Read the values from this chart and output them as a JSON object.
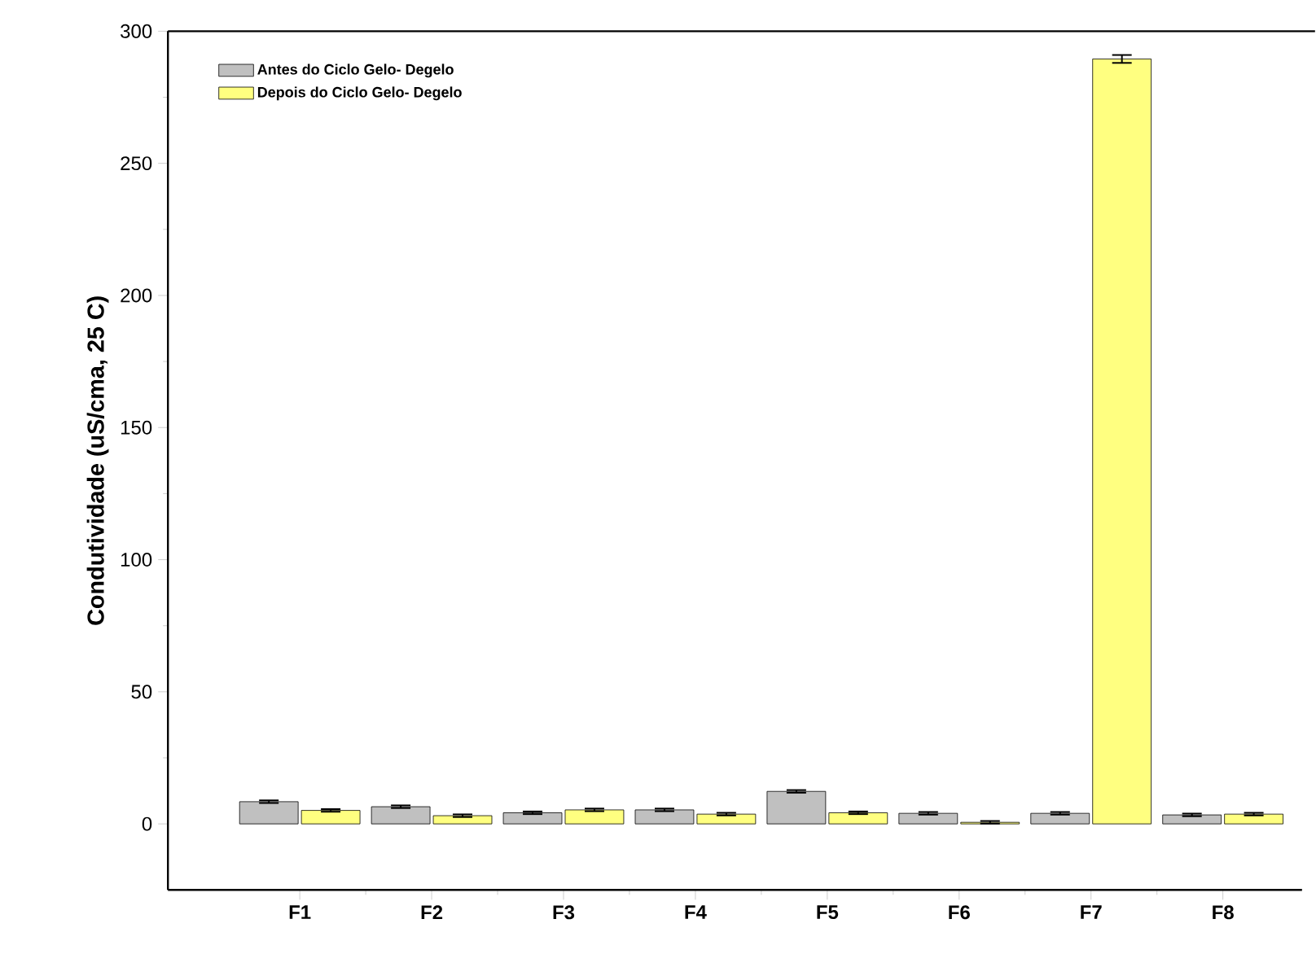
{
  "chart_data": {
    "type": "bar",
    "ylabel": "Condutividade (uS/cma, 25 C)",
    "categories": [
      "F1",
      "F2",
      "F3",
      "F4",
      "F5",
      "F6",
      "F7",
      "F8"
    ],
    "series": [
      {
        "name": "Antes do Ciclo Gelo- Degelo",
        "color": "#c0c0c0",
        "values": [
          8.4,
          6.5,
          4.2,
          5.3,
          12.3,
          4.0,
          4.0,
          3.4
        ],
        "errors": [
          0.5,
          0.5,
          0.5,
          0.5,
          0.5,
          0.5,
          0.5,
          0.5
        ]
      },
      {
        "name": "Depois do Ciclo Gelo- Degelo",
        "color": "#ffff80",
        "values": [
          5.1,
          3.1,
          5.3,
          3.7,
          4.2,
          0.6,
          289.5,
          3.7
        ],
        "errors": [
          0.5,
          0.5,
          0.5,
          0.5,
          0.5,
          0.5,
          1.5,
          0.5
        ]
      }
    ],
    "ylim": [
      -25,
      300
    ],
    "yticks": [
      0,
      50,
      100,
      150,
      200,
      250,
      300
    ],
    "grid": false,
    "legend": "top left"
  }
}
